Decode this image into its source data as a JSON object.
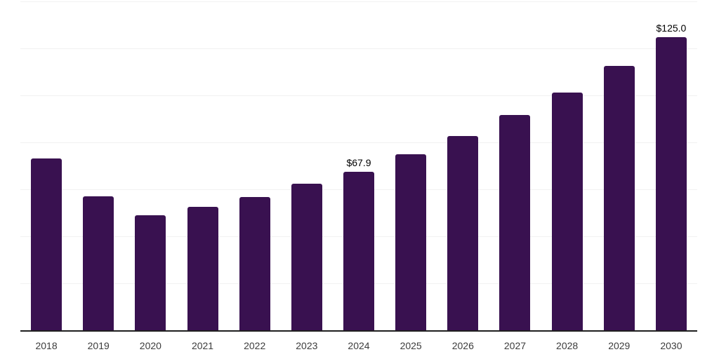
{
  "chart_data": {
    "type": "bar",
    "title": "",
    "xlabel": "",
    "ylabel": "",
    "categories": [
      "2018",
      "2019",
      "2020",
      "2021",
      "2022",
      "2023",
      "2024",
      "2025",
      "2026",
      "2027",
      "2028",
      "2029",
      "2030"
    ],
    "values": [
      73.3,
      57.3,
      49.2,
      52.8,
      57.0,
      62.7,
      67.9,
      75.2,
      83.0,
      91.9,
      101.5,
      112.8,
      125.0
    ],
    "bar_labels": [
      "",
      "",
      "",
      "",
      "",
      "",
      "$67.9",
      "",
      "",
      "",
      "",
      "",
      "$125.0"
    ],
    "currency_prefix": "$",
    "ylim": [
      0,
      140
    ],
    "gridline_step": 20,
    "grid": "horizontal-only",
    "legend": "none",
    "y_axis_labels_visible": false,
    "colors": {
      "bar": "#391150",
      "gridline": "#F1F1F1",
      "axis": "#1F1F1F",
      "tick_label": "#3C3C3C",
      "value_label": "#000000",
      "background": "#FFFFFF"
    }
  }
}
